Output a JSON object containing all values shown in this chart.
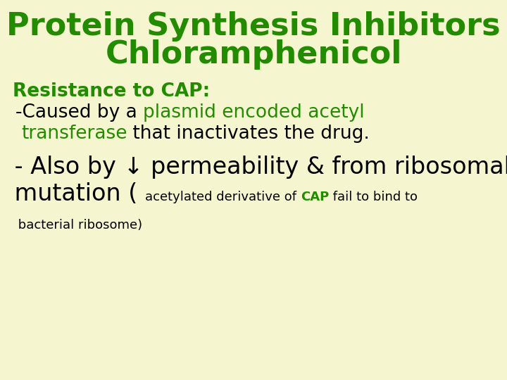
{
  "background_color": "#f5f5d0",
  "title_line1": "Protein Synthesis Inhibitors",
  "title_line2": "Chloramphenicol",
  "title_color": "#228B00",
  "title_fontsize": 32,
  "title_bold": true,
  "section_heading": "Resistance to CAP:",
  "section_heading_color": "#228B00",
  "section_heading_fontsize": 19,
  "section_heading_bold": true,
  "green": "#228B00",
  "black": "#000000",
  "body_size": 19,
  "large_size": 24,
  "small_size": 13
}
